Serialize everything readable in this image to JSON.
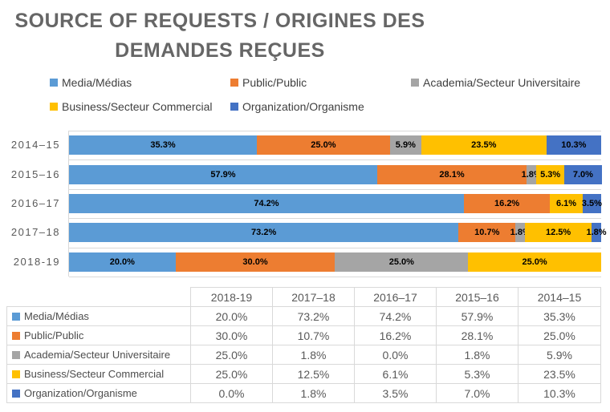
{
  "title": {
    "line1": "SOURCE OF REQUESTS / ORIGINES DES",
    "line2": "DEMANDES REÇUES"
  },
  "chart_data": {
    "type": "bar",
    "orientation": "horizontal-stacked",
    "unit": "%",
    "title": "SOURCE OF REQUESTS / ORIGINES DES DEMANDES REÇUES",
    "categories": [
      "2014–15",
      "2015–16",
      "2016–17",
      "2017–18",
      "2018-19"
    ],
    "series": [
      {
        "name": "Media/Médias",
        "color": "#5B9BD5",
        "values": [
          35.3,
          57.9,
          74.2,
          73.2,
          20.0
        ]
      },
      {
        "name": "Public/Public",
        "color": "#ED7D31",
        "values": [
          25.0,
          28.1,
          16.2,
          10.7,
          30.0
        ]
      },
      {
        "name": "Academia/Secteur Universitaire",
        "color": "#A5A5A5",
        "values": [
          5.9,
          1.8,
          0.0,
          1.8,
          25.0
        ]
      },
      {
        "name": "Business/Secteur Commercial",
        "color": "#FFC000",
        "values": [
          23.5,
          5.3,
          6.1,
          12.5,
          25.0
        ]
      },
      {
        "name": "Organization/Organisme",
        "color": "#4472C4",
        "values": [
          10.3,
          7.0,
          3.5,
          1.8,
          0.0
        ]
      }
    ],
    "xlim": [
      0,
      100
    ],
    "grid": "category-band-separators",
    "legend_position": "top",
    "data_labels": "percent, hidden when value is 0"
  },
  "table": {
    "col_headers": [
      "2018-19",
      "2017–18",
      "2016–17",
      "2015–16",
      "2014–15"
    ],
    "rows": [
      {
        "label": "Media/Médias",
        "color": "#5B9BD5",
        "values": [
          "20.0%",
          "73.2%",
          "74.2%",
          "57.9%",
          "35.3%"
        ]
      },
      {
        "label": "Public/Public",
        "color": "#ED7D31",
        "values": [
          "30.0%",
          "10.7%",
          "16.2%",
          "28.1%",
          "25.0%"
        ]
      },
      {
        "label": "Academia/Secteur Universitaire",
        "color": "#A5A5A5",
        "values": [
          "25.0%",
          "1.8%",
          "0.0%",
          "1.8%",
          "5.9%"
        ]
      },
      {
        "label": "Business/Secteur Commercial",
        "color": "#FFC000",
        "values": [
          "25.0%",
          "12.5%",
          "6.1%",
          "5.3%",
          "23.5%"
        ]
      },
      {
        "label": "Organization/Organisme",
        "color": "#4472C4",
        "values": [
          "0.0%",
          "1.8%",
          "3.5%",
          "7.0%",
          "10.3%"
        ]
      }
    ]
  },
  "colors": {
    "title_text": "#666666",
    "axis_text": "#595959",
    "table_text": "#595959",
    "grid_line": "#D9D9D9",
    "data_label_text": "#000000"
  }
}
